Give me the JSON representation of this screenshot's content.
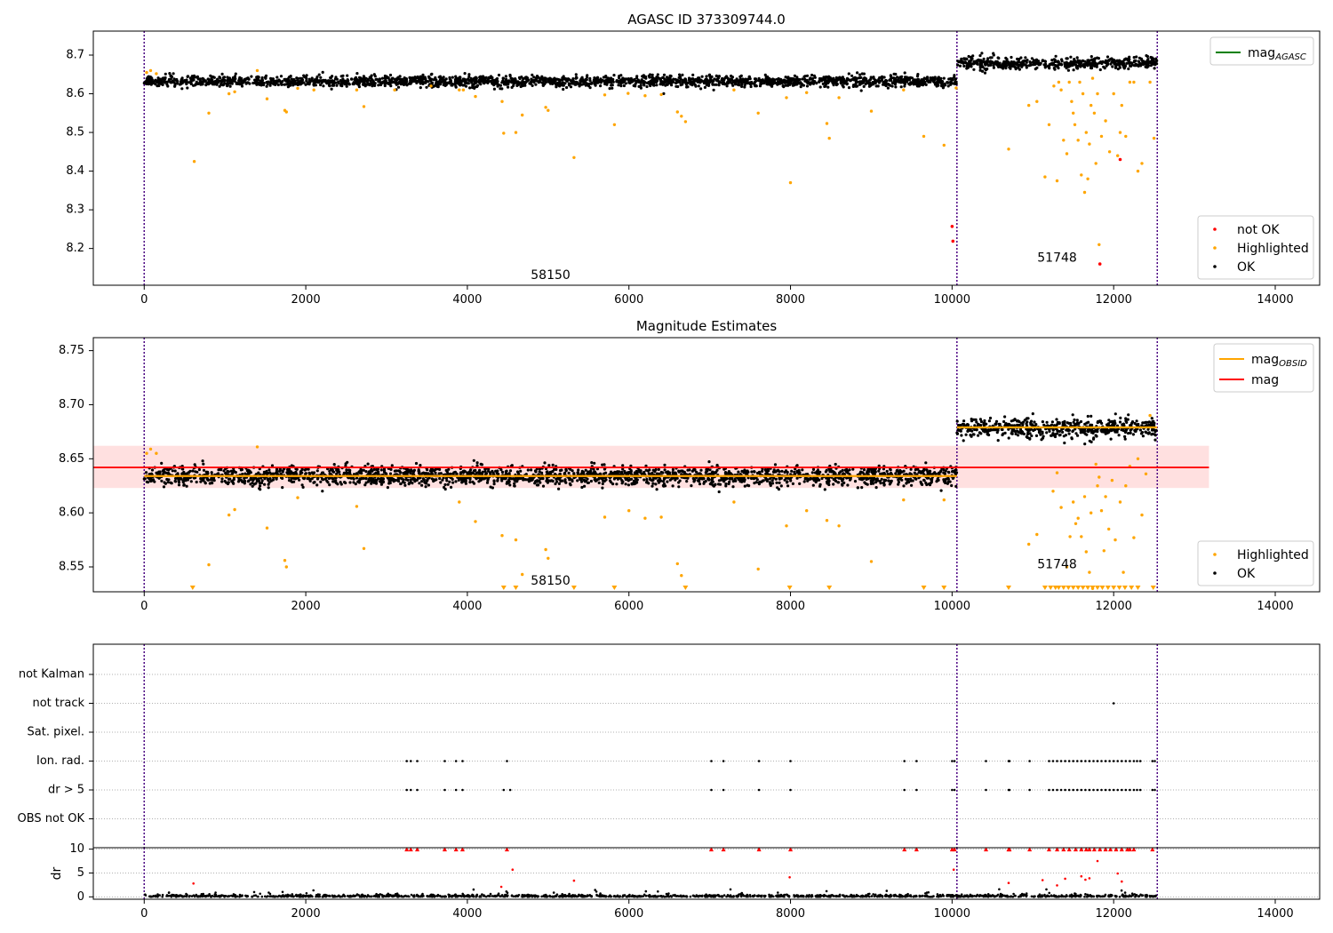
{
  "chart_data": [
    {
      "type": "scatter",
      "title": "AGASC ID 373309744.0",
      "xlim": [
        -630,
        14550
      ],
      "ylim": [
        8.105,
        8.762
      ],
      "xticks": [
        0,
        2000,
        4000,
        6000,
        8000,
        10000,
        12000,
        14000
      ],
      "yticks": [
        8.2,
        8.3,
        8.4,
        8.5,
        8.6,
        8.7
      ],
      "obs_boundaries": [
        0,
        10060,
        12540
      ],
      "obs_labels": [
        {
          "text": "58150",
          "x": 5030,
          "y": 8.13
        },
        {
          "text": "51748",
          "x": 11300,
          "y": 8.175
        }
      ],
      "segments": [
        {
          "x0": 0,
          "x1": 10060,
          "mean": 8.632,
          "spread": 0.013
        },
        {
          "x0": 10060,
          "x1": 12540,
          "mean": 8.679,
          "spread": 0.013
        }
      ],
      "line_legend": [
        {
          "name": "mag",
          "sub": "AGASC",
          "color": "#008000"
        }
      ],
      "point_legend": [
        {
          "name": "not OK",
          "color": "#ff0000"
        },
        {
          "name": "Highlighted",
          "color": "#ffa500"
        },
        {
          "name": "OK",
          "color": "#000000"
        }
      ],
      "highlighted": [
        [
          30,
          8.655
        ],
        [
          80,
          8.66
        ],
        [
          150,
          8.652
        ],
        [
          620,
          8.425
        ],
        [
          800,
          8.55
        ],
        [
          1050,
          8.6
        ],
        [
          1120,
          8.605
        ],
        [
          1400,
          8.66
        ],
        [
          1520,
          8.587
        ],
        [
          1740,
          8.557
        ],
        [
          1760,
          8.553
        ],
        [
          1900,
          8.614
        ],
        [
          2100,
          8.61
        ],
        [
          2630,
          8.61
        ],
        [
          2720,
          8.567
        ],
        [
          3100,
          8.61
        ],
        [
          3550,
          8.62
        ],
        [
          3900,
          8.61
        ],
        [
          3950,
          8.61
        ],
        [
          4100,
          8.593
        ],
        [
          4430,
          8.58
        ],
        [
          4450,
          8.498
        ],
        [
          4600,
          8.5
        ],
        [
          4680,
          8.545
        ],
        [
          4970,
          8.565
        ],
        [
          5000,
          8.557
        ],
        [
          5320,
          8.435
        ],
        [
          5700,
          8.597
        ],
        [
          5820,
          8.52
        ],
        [
          5990,
          8.601
        ],
        [
          6200,
          8.595
        ],
        [
          6400,
          8.598
        ],
        [
          6600,
          8.553
        ],
        [
          6650,
          8.542
        ],
        [
          6700,
          8.528
        ],
        [
          7300,
          8.61
        ],
        [
          7600,
          8.55
        ],
        [
          7950,
          8.59
        ],
        [
          8000,
          8.37
        ],
        [
          8200,
          8.603
        ],
        [
          8450,
          8.523
        ],
        [
          8480,
          8.485
        ],
        [
          8600,
          8.59
        ],
        [
          9000,
          8.555
        ],
        [
          9400,
          8.61
        ],
        [
          9650,
          8.49
        ],
        [
          9900,
          8.467
        ],
        [
          10050,
          8.615
        ],
        [
          10700,
          8.457
        ],
        [
          10950,
          8.57
        ],
        [
          11050,
          8.58
        ],
        [
          11150,
          8.385
        ],
        [
          11200,
          8.52
        ],
        [
          11260,
          8.62
        ],
        [
          11300,
          8.375
        ],
        [
          11320,
          8.63
        ],
        [
          11350,
          8.61
        ],
        [
          11380,
          8.48
        ],
        [
          11420,
          8.445
        ],
        [
          11450,
          8.63
        ],
        [
          11480,
          8.58
        ],
        [
          11500,
          8.55
        ],
        [
          11520,
          8.52
        ],
        [
          11560,
          8.48
        ],
        [
          11580,
          8.63
        ],
        [
          11600,
          8.39
        ],
        [
          11620,
          8.6
        ],
        [
          11640,
          8.345
        ],
        [
          11660,
          8.5
        ],
        [
          11680,
          8.38
        ],
        [
          11700,
          8.47
        ],
        [
          11720,
          8.57
        ],
        [
          11740,
          8.64
        ],
        [
          11760,
          8.55
        ],
        [
          11780,
          8.42
        ],
        [
          11800,
          8.6
        ],
        [
          11820,
          8.21
        ],
        [
          11850,
          8.49
        ],
        [
          11900,
          8.53
        ],
        [
          11950,
          8.45
        ],
        [
          12000,
          8.6
        ],
        [
          12050,
          8.44
        ],
        [
          12080,
          8.5
        ],
        [
          12100,
          8.57
        ],
        [
          12150,
          8.49
        ],
        [
          12200,
          8.63
        ],
        [
          12250,
          8.63
        ],
        [
          12300,
          8.4
        ],
        [
          12350,
          8.42
        ],
        [
          12450,
          8.63
        ],
        [
          12500,
          8.485
        ]
      ],
      "not_ok": [
        [
          10000,
          8.257
        ],
        [
          10010,
          8.219
        ],
        [
          12080,
          8.43
        ],
        [
          11830,
          8.16
        ]
      ]
    },
    {
      "type": "scatter",
      "title": "Magnitude Estimates",
      "xlim": [
        -630,
        14550
      ],
      "ylim": [
        8.527,
        8.762
      ],
      "xticks": [
        0,
        2000,
        4000,
        6000,
        8000,
        10000,
        12000,
        14000
      ],
      "yticks": [
        8.55,
        8.6,
        8.65,
        8.7,
        8.75
      ],
      "obs_boundaries": [
        0,
        10060,
        12540
      ],
      "obs_labels": [
        {
          "text": "58150",
          "x": 5030,
          "y": 8.537
        },
        {
          "text": "51748",
          "x": 11300,
          "y": 8.552
        }
      ],
      "segments": [
        {
          "x0": 0,
          "x1": 10060,
          "mean": 8.634,
          "spread": 0.008
        },
        {
          "x0": 10060,
          "x1": 12540,
          "mean": 8.678,
          "spread": 0.008
        }
      ],
      "obsid_mags": [
        {
          "x0": 0,
          "x1": 10060,
          "y": 8.634
        },
        {
          "x0": 10060,
          "x1": 12540,
          "y": 8.679
        }
      ],
      "mag": {
        "x0": -630,
        "x1": 13180,
        "y": 8.642,
        "band": [
          8.623,
          8.662
        ]
      },
      "line_legend": [
        {
          "name": "mag",
          "sub": "OBSID",
          "color": "#ffa500"
        },
        {
          "name": "mag",
          "sub": "",
          "color": "#ff0000"
        }
      ],
      "point_legend": [
        {
          "name": "Highlighted",
          "color": "#ffa500"
        },
        {
          "name": "OK",
          "color": "#000000"
        }
      ],
      "highlighted": [
        [
          30,
          8.655
        ],
        [
          80,
          8.659
        ],
        [
          150,
          8.655
        ],
        [
          800,
          8.552
        ],
        [
          1050,
          8.598
        ],
        [
          1120,
          8.603
        ],
        [
          1400,
          8.661
        ],
        [
          1520,
          8.586
        ],
        [
          1740,
          8.556
        ],
        [
          1760,
          8.55
        ],
        [
          1900,
          8.614
        ],
        [
          2630,
          8.606
        ],
        [
          2720,
          8.567
        ],
        [
          3900,
          8.61
        ],
        [
          4100,
          8.592
        ],
        [
          4430,
          8.579
        ],
        [
          4600,
          8.575
        ],
        [
          4680,
          8.543
        ],
        [
          4970,
          8.566
        ],
        [
          5000,
          8.558
        ],
        [
          5700,
          8.596
        ],
        [
          6000,
          8.602
        ],
        [
          6200,
          8.595
        ],
        [
          6400,
          8.596
        ],
        [
          6600,
          8.553
        ],
        [
          6650,
          8.542
        ],
        [
          7300,
          8.61
        ],
        [
          7600,
          8.548
        ],
        [
          7950,
          8.588
        ],
        [
          8200,
          8.602
        ],
        [
          8450,
          8.593
        ],
        [
          8600,
          8.588
        ],
        [
          9000,
          8.555
        ],
        [
          9400,
          8.612
        ],
        [
          9900,
          8.612
        ],
        [
          10950,
          8.571
        ],
        [
          11050,
          8.58
        ],
        [
          11250,
          8.62
        ],
        [
          11300,
          8.637
        ],
        [
          11350,
          8.605
        ],
        [
          11420,
          8.55
        ],
        [
          11460,
          8.578
        ],
        [
          11500,
          8.61
        ],
        [
          11530,
          8.59
        ],
        [
          11560,
          8.595
        ],
        [
          11600,
          8.578
        ],
        [
          11640,
          8.615
        ],
        [
          11660,
          8.564
        ],
        [
          11700,
          8.545
        ],
        [
          11720,
          8.6
        ],
        [
          11740,
          8.53
        ],
        [
          11780,
          8.645
        ],
        [
          11800,
          8.625
        ],
        [
          11820,
          8.633
        ],
        [
          11850,
          8.602
        ],
        [
          11880,
          8.565
        ],
        [
          11900,
          8.615
        ],
        [
          11940,
          8.585
        ],
        [
          11980,
          8.63
        ],
        [
          12020,
          8.575
        ],
        [
          12080,
          8.61
        ],
        [
          12120,
          8.545
        ],
        [
          12150,
          8.625
        ],
        [
          12200,
          8.643
        ],
        [
          12250,
          8.577
        ],
        [
          12300,
          8.65
        ],
        [
          12350,
          8.598
        ],
        [
          12400,
          8.636
        ],
        [
          12450,
          8.69
        ]
      ],
      "clipped": [
        600,
        4450,
        4600,
        5320,
        5820,
        6700,
        7990,
        8480,
        9650,
        9900,
        10700,
        11150,
        11220,
        11280,
        11320,
        11380,
        11440,
        11500,
        11560,
        11620,
        11680,
        11740,
        11800,
        11860,
        11930,
        12000,
        12070,
        12140,
        12220,
        12300,
        12490
      ]
    },
    {
      "type": "scatter",
      "title": "",
      "xlim": [
        -630,
        14550
      ],
      "xticks": [
        0,
        2000,
        4000,
        6000,
        8000,
        10000,
        12000,
        14000
      ],
      "obs_boundaries": [
        0,
        10060,
        12540
      ],
      "flag_rows": [
        "not Kalman",
        "not track",
        "Sat. pixel.",
        "Ion. rad.",
        "dr > 5",
        "OBS not OK"
      ],
      "flags": {
        "not track": [
          12000
        ],
        "Ion. rad.": [
          3250,
          3300,
          3380,
          3720,
          3860,
          3940,
          4490,
          7020,
          7170,
          7610,
          8000,
          9410,
          9560,
          10000,
          10030,
          10420,
          10700,
          10710,
          10960,
          11200,
          11250,
          11300,
          11350,
          11400,
          11450,
          11500,
          11550,
          11600,
          11650,
          11700,
          11750,
          11800,
          11850,
          11900,
          11950,
          12000,
          12050,
          12100,
          12150,
          12200,
          12250,
          12290,
          12330,
          12480,
          12510
        ],
        "dr > 5": [
          3250,
          3300,
          3380,
          3720,
          3860,
          3940,
          4450,
          4530,
          7020,
          7170,
          7610,
          8000,
          9410,
          9560,
          10000,
          10030,
          10420,
          10700,
          10710,
          10960,
          11200,
          11250,
          11300,
          11350,
          11400,
          11450,
          11500,
          11550,
          11600,
          11650,
          11700,
          11750,
          11800,
          11850,
          11900,
          11950,
          12000,
          12050,
          12100,
          12150,
          12200,
          12250,
          12290,
          12330,
          12480,
          12510
        ]
      },
      "dr_ylabel": "dr",
      "dr_ylim": [
        -0.5,
        10.3
      ],
      "dr_yticks": [
        0,
        5,
        10
      ],
      "dr_clip": 10,
      "dr_high": [
        3250,
        3300,
        3380,
        3720,
        3860,
        3940,
        4490,
        7020,
        7170,
        7610,
        8000,
        9410,
        9560,
        10000,
        10030,
        10420,
        10700,
        10710,
        10960,
        11200,
        11300,
        11380,
        11450,
        11530,
        11600,
        11660,
        11700,
        11760,
        11830,
        11900,
        11960,
        12030,
        12100,
        12170,
        12200,
        12250,
        12480
      ],
      "dr_mid": [
        [
          610,
          2.8
        ],
        [
          4420,
          2.1
        ],
        [
          4560,
          5.7
        ],
        [
          5320,
          3.4
        ],
        [
          7990,
          4.1
        ],
        [
          10020,
          5.7
        ],
        [
          10700,
          2.9
        ],
        [
          11120,
          3.5
        ],
        [
          11300,
          2.4
        ],
        [
          11400,
          3.8
        ],
        [
          11600,
          4.3
        ],
        [
          11650,
          3.6
        ],
        [
          11700,
          3.9
        ],
        [
          11800,
          7.5
        ],
        [
          12050,
          4.9
        ],
        [
          12100,
          3.2
        ]
      ]
    }
  ]
}
